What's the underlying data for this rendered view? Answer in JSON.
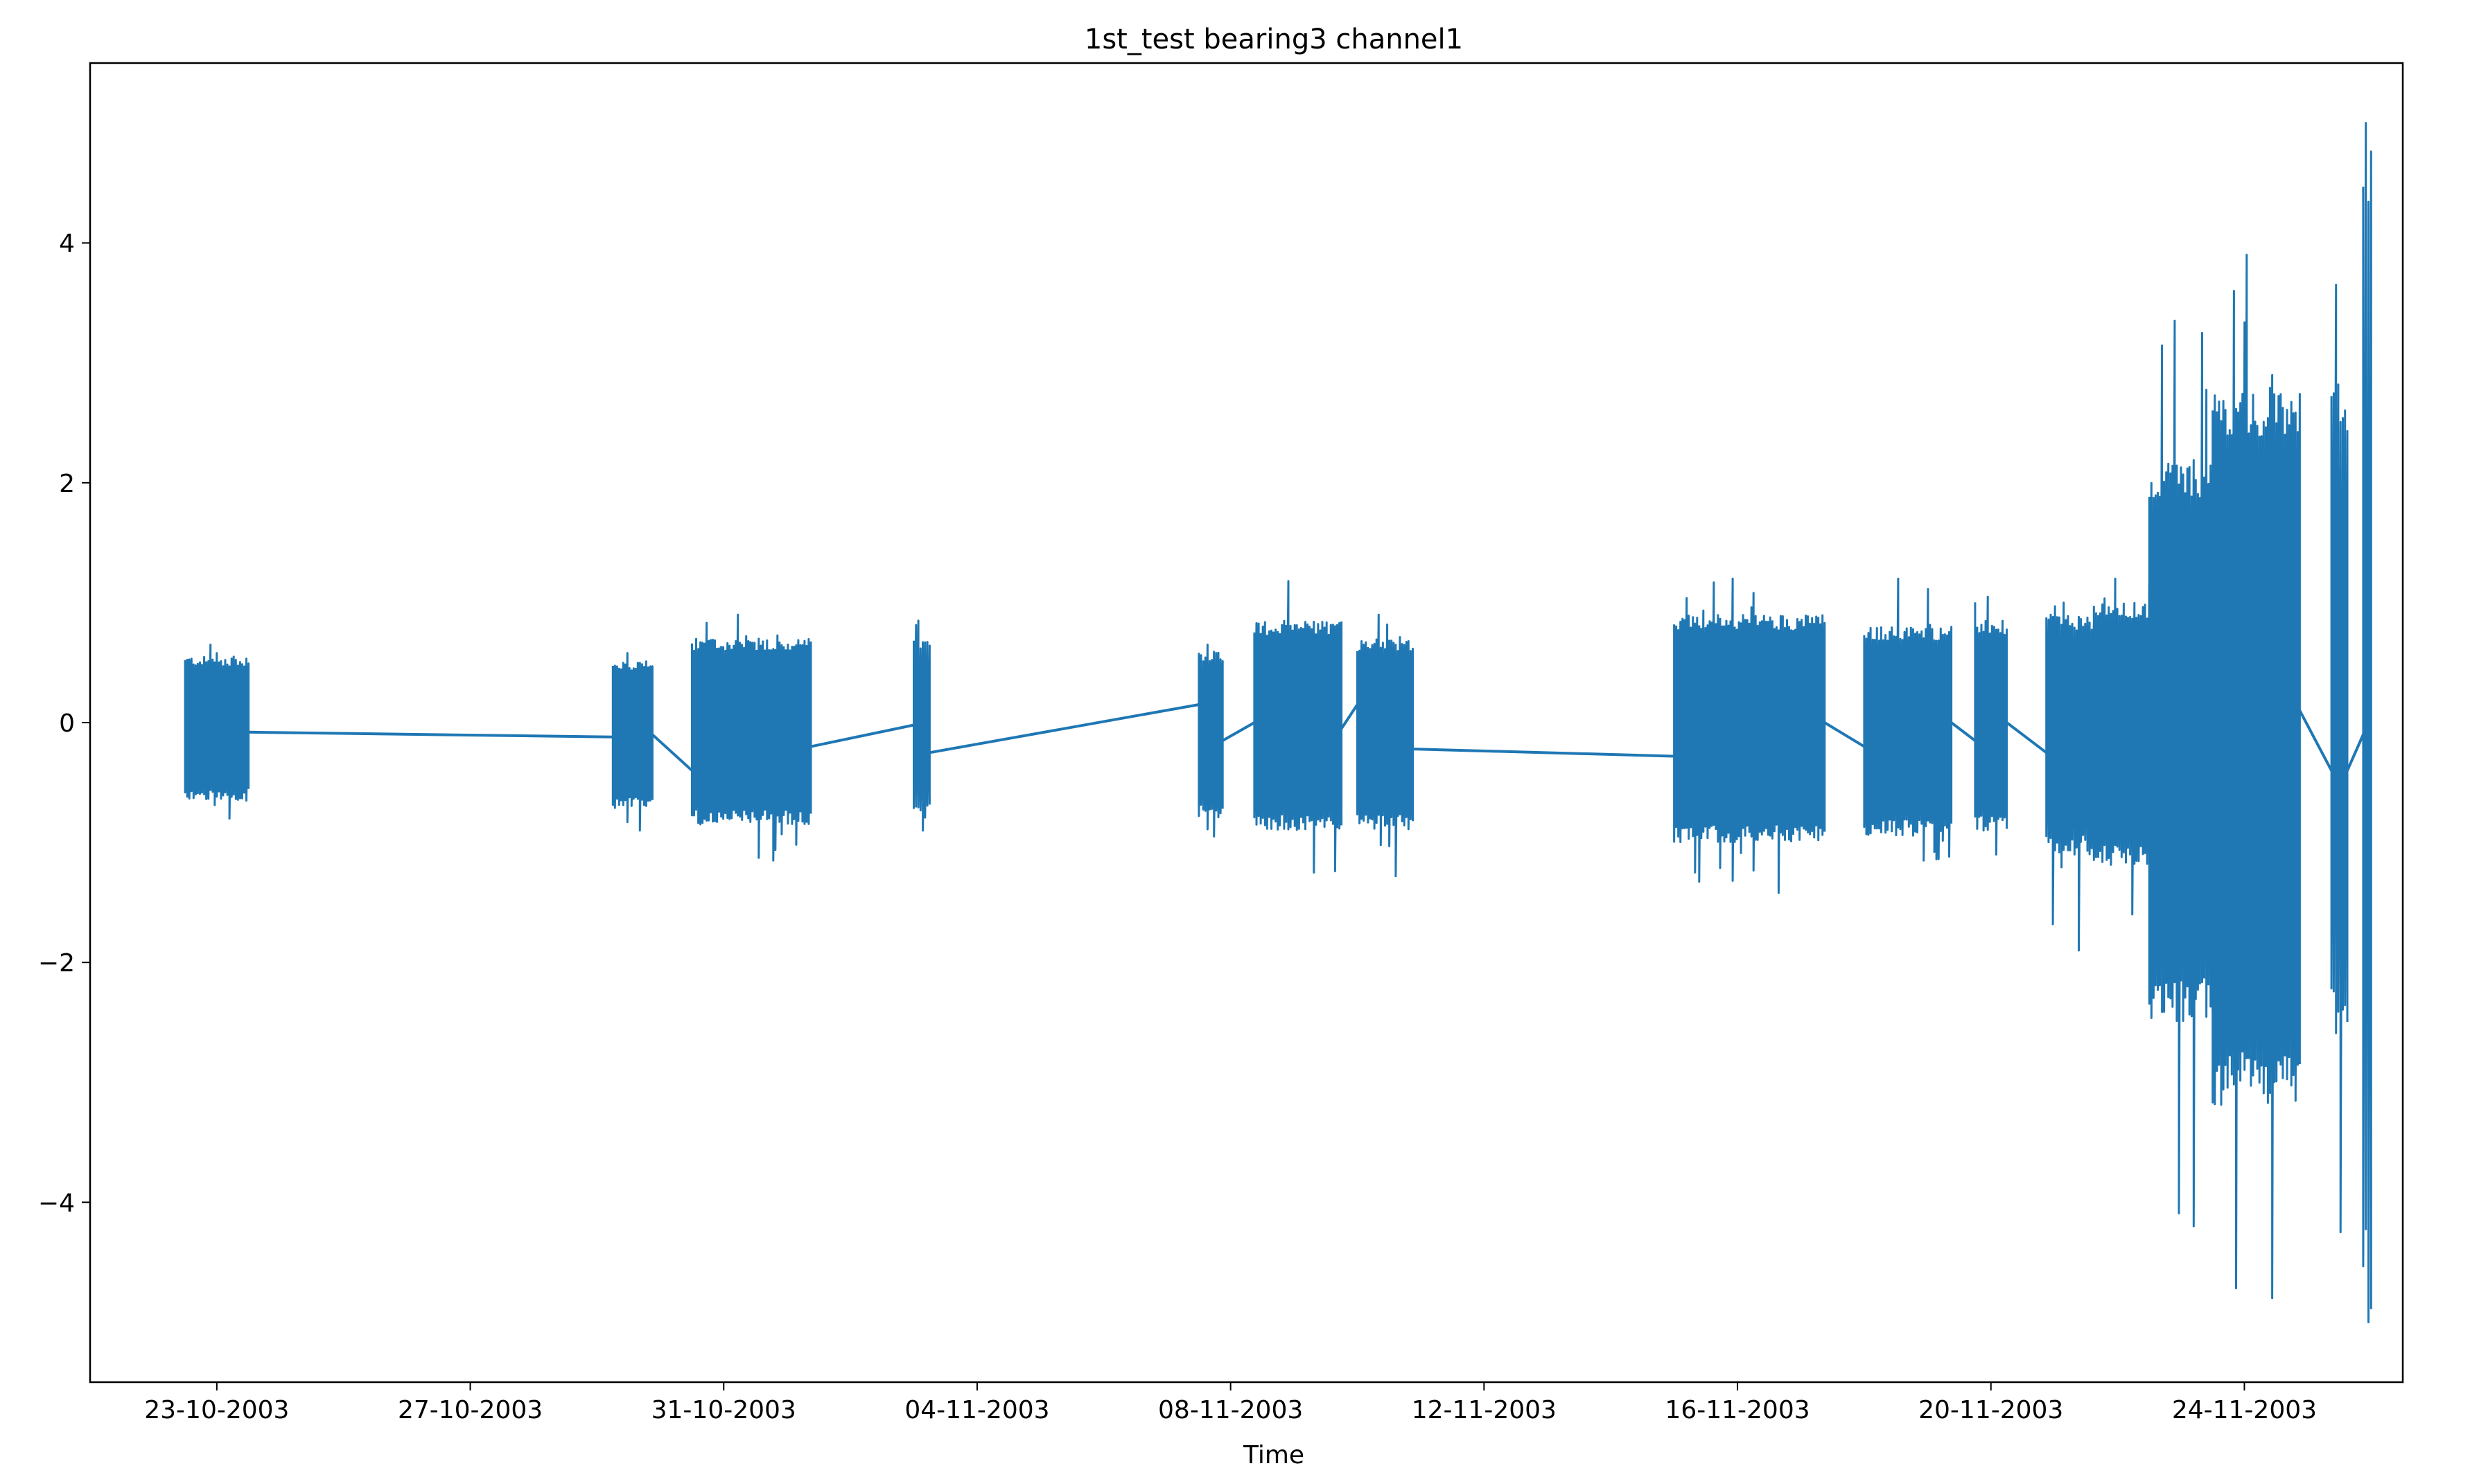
{
  "chart_data": {
    "type": "line",
    "title": "1st_test bearing3 channel1",
    "xlabel": "Time",
    "ylabel": "",
    "xlim": [
      "2003-10-21T00:00",
      "2003-11-26T12:00"
    ],
    "ylim": [
      -5.5,
      5.5
    ],
    "grid": false,
    "legend": "none",
    "x_ticks": [
      "23-10-2003",
      "27-10-2003",
      "31-10-2003",
      "04-11-2003",
      "08-11-2003",
      "12-11-2003",
      "16-11-2003",
      "20-11-2003",
      "24-11-2003"
    ],
    "x_tick_dates": [
      "2003-10-23",
      "2003-10-27",
      "2003-10-31",
      "2003-11-04",
      "2003-11-08",
      "2003-11-12",
      "2003-11-16",
      "2003-11-20",
      "2003-11-24"
    ],
    "y_ticks": [
      -4,
      -2,
      0,
      2,
      4
    ],
    "y_tick_labels": [
      "−4",
      "−2",
      "0",
      "2",
      "4"
    ],
    "series": [
      {
        "color": "#1f77b4",
        "segments": [
          {
            "start": "2003-10-22T12:00",
            "end": "2003-10-23T12:00",
            "low": -0.65,
            "high": 0.55,
            "peak_high": 0.65,
            "peak_low": -0.8
          },
          {
            "start": "2003-10-29T06:00",
            "end": "2003-10-29T21:00",
            "low": -0.72,
            "high": 0.5,
            "peak_high": 0.58,
            "peak_low": -0.9
          },
          {
            "start": "2003-10-30T12:00",
            "end": "2003-11-01T09:00",
            "low": -0.85,
            "high": 0.7,
            "peak_high": 0.9,
            "peak_low": -1.15
          },
          {
            "start": "2003-11-03T00:00",
            "end": "2003-11-03T06:00",
            "low": -0.8,
            "high": 0.7,
            "peak_high": 0.85,
            "peak_low": -0.9
          },
          {
            "start": "2003-11-07T12:00",
            "end": "2003-11-07T21:00",
            "low": -0.8,
            "high": 0.6,
            "peak_high": 0.65,
            "peak_low": -0.95
          },
          {
            "start": "2003-11-08T09:00",
            "end": "2003-11-09T18:00",
            "low": -0.9,
            "high": 0.85,
            "peak_high": 1.18,
            "peak_low": -1.25
          },
          {
            "start": "2003-11-10T00:00",
            "end": "2003-11-10T21:00",
            "low": -0.9,
            "high": 0.7,
            "peak_high": 0.9,
            "peak_low": -1.28
          },
          {
            "start": "2003-11-15T00:00",
            "end": "2003-11-17T09:00",
            "low": -1.0,
            "high": 0.9,
            "peak_high": 1.2,
            "peak_low": -1.42
          },
          {
            "start": "2003-11-18T00:00",
            "end": "2003-11-19T09:00",
            "low": -0.95,
            "high": 0.8,
            "peak_high": 1.2,
            "peak_low": -1.15
          },
          {
            "start": "2003-11-19T18:00",
            "end": "2003-11-20T06:00",
            "low": -0.9,
            "high": 0.85,
            "peak_high": 1.05,
            "peak_low": -1.1
          },
          {
            "start": "2003-11-20T21:00",
            "end": "2003-11-21T15:00",
            "low": -1.1,
            "high": 0.9,
            "peak_high": 1.0,
            "peak_low": -1.9
          },
          {
            "start": "2003-11-21T15:00",
            "end": "2003-11-22T12:00",
            "low": -1.2,
            "high": 1.0,
            "peak_high": 1.2,
            "peak_low": -1.6
          },
          {
            "start": "2003-11-22T12:00",
            "end": "2003-11-23T12:00",
            "low": -2.5,
            "high": 2.2,
            "peak_high": 3.35,
            "peak_low": -4.2
          },
          {
            "start": "2003-11-23T12:00",
            "end": "2003-11-24T21:00",
            "low": -3.2,
            "high": 2.8,
            "peak_high": 3.9,
            "peak_low": -4.8
          },
          {
            "start": "2003-11-25T09:00",
            "end": "2003-11-25T15:00",
            "low": -2.6,
            "high": 2.8,
            "peak_high": 3.65,
            "peak_low": -4.25
          },
          {
            "start": "2003-11-25T21:00",
            "end": "2003-11-26T00:00",
            "low": -4.9,
            "high": 4.9,
            "peak_high": 5.0,
            "peak_low": -5.0
          }
        ],
        "connectors": [
          {
            "x": "2003-10-23T12:00",
            "y": -0.08
          },
          {
            "x": "2003-10-29T06:00",
            "y": -0.12
          },
          {
            "x": "2003-10-29T21:00",
            "y": -0.1
          },
          {
            "x": "2003-10-30T12:00",
            "y": -0.4
          },
          {
            "x": "2003-11-01T09:00",
            "y": -0.2
          },
          {
            "x": "2003-11-03T00:00",
            "y": -0.02
          },
          {
            "x": "2003-11-03T06:00",
            "y": -0.25
          },
          {
            "x": "2003-11-07T12:00",
            "y": 0.15
          },
          {
            "x": "2003-11-07T21:00",
            "y": -0.15
          },
          {
            "x": "2003-11-08T09:00",
            "y": 0.0
          },
          {
            "x": "2003-11-09T18:00",
            "y": -0.05
          },
          {
            "x": "2003-11-10T00:00",
            "y": 0.15
          },
          {
            "x": "2003-11-10T21:00",
            "y": -0.22
          },
          {
            "x": "2003-11-15T00:00",
            "y": -0.28
          },
          {
            "x": "2003-11-17T09:00",
            "y": 0.0
          },
          {
            "x": "2003-11-18T00:00",
            "y": -0.2
          },
          {
            "x": "2003-11-19T09:00",
            "y": 0.0
          },
          {
            "x": "2003-11-19T18:00",
            "y": -0.15
          },
          {
            "x": "2003-11-20T06:00",
            "y": 0.0
          },
          {
            "x": "2003-11-20T21:00",
            "y": -0.25
          },
          {
            "x": "2003-11-24T21:00",
            "y": 0.1
          },
          {
            "x": "2003-11-25T09:00",
            "y": -0.4
          },
          {
            "x": "2003-11-25T15:00",
            "y": -0.4
          },
          {
            "x": "2003-11-25T21:00",
            "y": -0.1
          },
          {
            "x": "2003-11-26T00:00",
            "y": -0.1
          }
        ]
      }
    ]
  }
}
